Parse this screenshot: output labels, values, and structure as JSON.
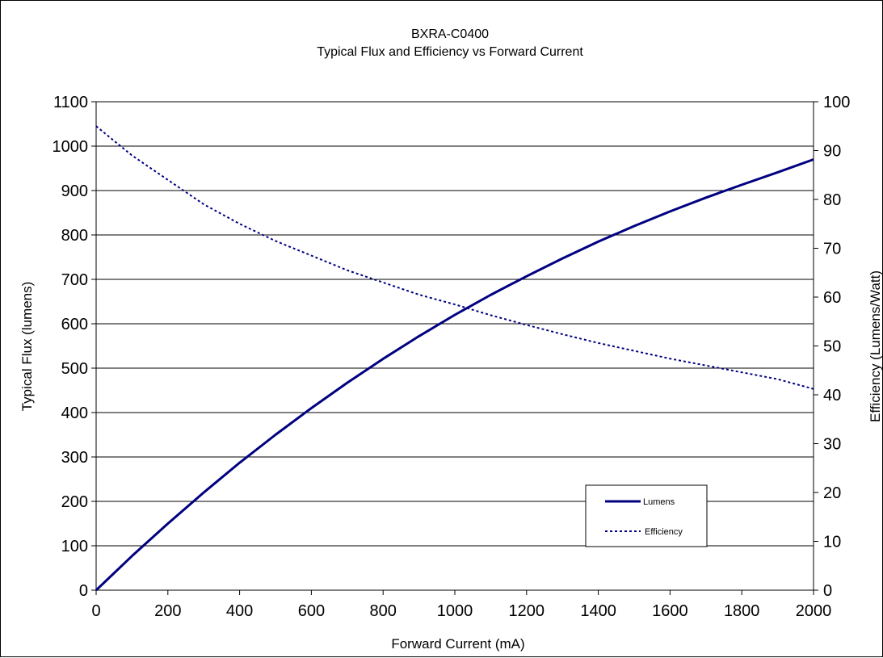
{
  "chart_data": {
    "type": "line",
    "title": "BXRA-C0400",
    "subtitle": "Typical Flux and Efficiency vs Forward Current",
    "xlabel": "Forward Current (mA)",
    "ylabel": "Typical Flux (lumens)",
    "y2label": "Efficiency (Lumens/Watt)",
    "xlim": [
      0,
      2000
    ],
    "ylim": [
      0,
      1100
    ],
    "y2lim": [
      0,
      100
    ],
    "x_ticks": [
      0,
      200,
      400,
      600,
      800,
      1000,
      1200,
      1400,
      1600,
      1800,
      2000
    ],
    "y_ticks": [
      0,
      100,
      200,
      300,
      400,
      500,
      600,
      700,
      800,
      900,
      1000,
      1100
    ],
    "y2_ticks": [
      0,
      10,
      20,
      30,
      40,
      50,
      60,
      70,
      80,
      90,
      100
    ],
    "grid": "horizontal",
    "legend_position": "bottom-right",
    "x": [
      0,
      100,
      200,
      300,
      400,
      500,
      600,
      700,
      800,
      900,
      1000,
      1100,
      1200,
      1300,
      1400,
      1500,
      1600,
      1700,
      1800,
      1900,
      2000
    ],
    "series": [
      {
        "name": "Lumens",
        "axis": "left",
        "style": "solid",
        "color": "#000080",
        "values": [
          0,
          77,
          150,
          220,
          287,
          350,
          410,
          467,
          521,
          572,
          620,
          665,
          707,
          747,
          785,
          820,
          853,
          884,
          913,
          941,
          970
        ]
      },
      {
        "name": "Efficiency",
        "axis": "right",
        "style": "dashed",
        "color": "#000080",
        "values": [
          95,
          89,
          84,
          79,
          75,
          71.5,
          68.5,
          65.5,
          63,
          60.5,
          58.5,
          56.3,
          54.3,
          52.4,
          50.6,
          49,
          47.4,
          46,
          44.6,
          43.2,
          41.2
        ]
      }
    ]
  }
}
